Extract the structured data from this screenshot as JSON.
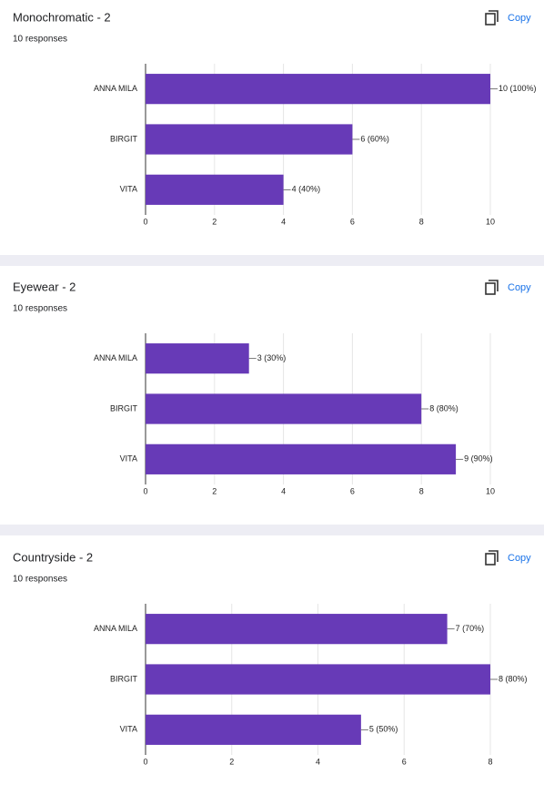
{
  "chart_data": [
    {
      "type": "bar",
      "orientation": "horizontal",
      "title": "Monochromatic - 2",
      "subtitle": "10 responses",
      "action": "Copy",
      "categories": [
        "ANNA MILA",
        "BIRGIT",
        "VITA"
      ],
      "values": [
        10,
        6,
        4
      ],
      "value_labels": [
        "10 (100%)",
        "6 (60%)",
        "4 (40%)"
      ],
      "color": "#673ab7",
      "xlim": [
        0,
        10
      ],
      "xticks": [
        0,
        2,
        4,
        6,
        8,
        10
      ],
      "grid": true
    },
    {
      "type": "bar",
      "orientation": "horizontal",
      "title": "Eyewear - 2",
      "subtitle": "10 responses",
      "action": "Copy",
      "categories": [
        "ANNA MILA",
        "BIRGIT",
        "VITA"
      ],
      "values": [
        3,
        8,
        9
      ],
      "value_labels": [
        "3 (30%)",
        "8 (80%)",
        "9 (90%)"
      ],
      "color": "#673ab7",
      "xlim": [
        0,
        10
      ],
      "xticks": [
        0,
        2,
        4,
        6,
        8,
        10
      ],
      "grid": true
    },
    {
      "type": "bar",
      "orientation": "horizontal",
      "title": "Countryside - 2",
      "subtitle": "10 responses",
      "action": "Copy",
      "categories": [
        "ANNA MILA",
        "BIRGIT",
        "VITA"
      ],
      "values": [
        7,
        8,
        5
      ],
      "value_labels": [
        "7 (70%)",
        "8 (80%)",
        "5 (50%)"
      ],
      "color": "#673ab7",
      "xlim": [
        0,
        8
      ],
      "xticks": [
        0,
        2,
        4,
        6,
        8
      ],
      "grid": true
    }
  ]
}
